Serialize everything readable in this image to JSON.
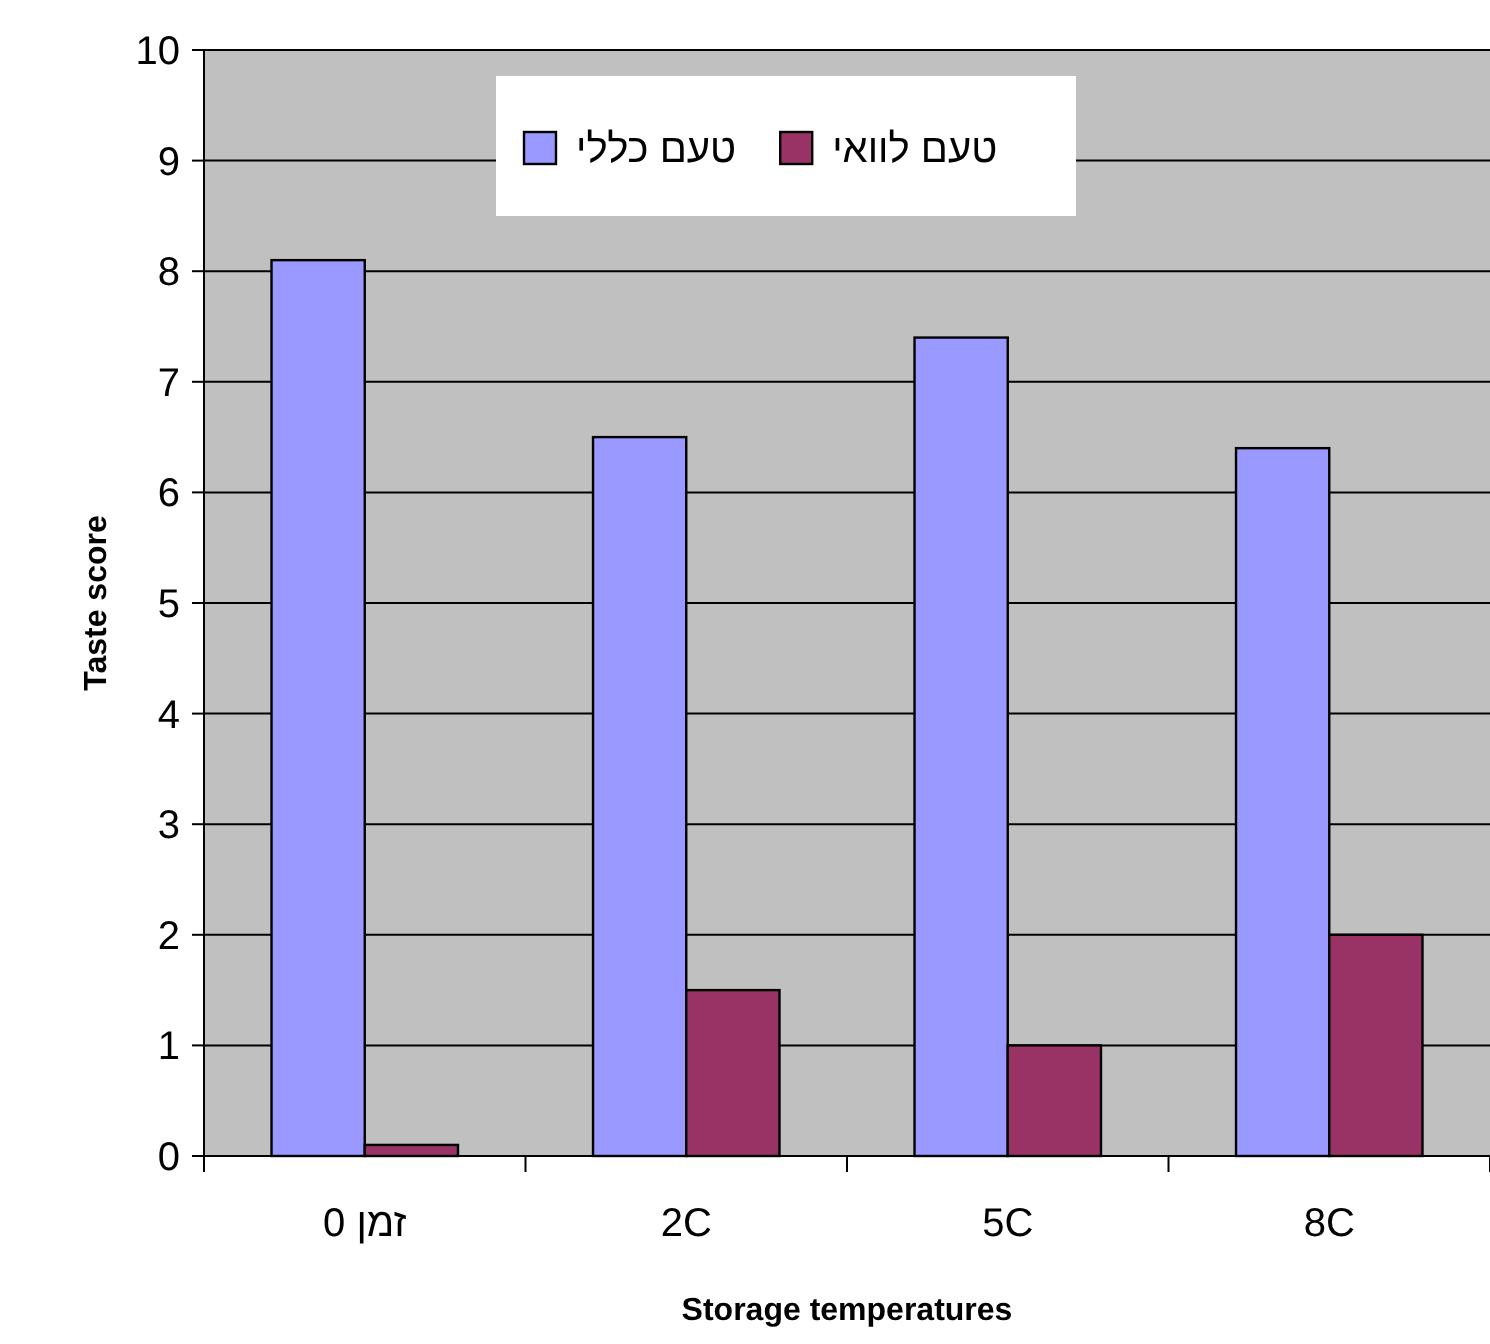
{
  "chart_data": {
    "type": "bar",
    "xlabel": "Storage temperatures",
    "ylabel": "Taste score",
    "categories": [
      "זמן 0",
      "2C",
      "5C",
      "8C"
    ],
    "series": [
      {
        "name": "טעם כללי",
        "color": "#9999ff",
        "values": [
          8.1,
          6.5,
          7.4,
          6.4
        ]
      },
      {
        "name": "טעם לוואי",
        "color": "#993366",
        "values": [
          0.1,
          1.5,
          1.0,
          2.0
        ]
      }
    ],
    "ylim": [
      0,
      10
    ],
    "yticks": [
      0,
      1,
      2,
      3,
      4,
      5,
      6,
      7,
      8,
      9,
      10
    ],
    "grid": "y",
    "legend": "top"
  }
}
